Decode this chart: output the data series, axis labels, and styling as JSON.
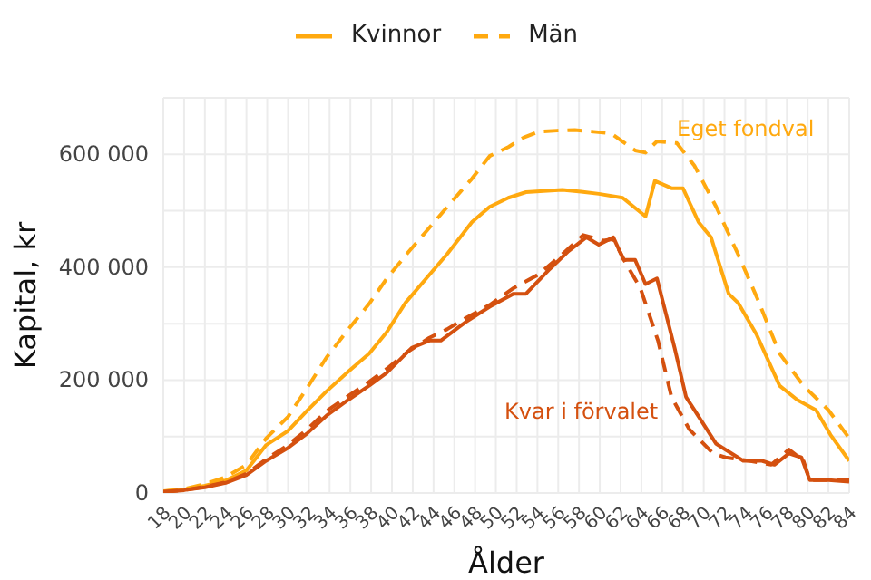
{
  "chart_data": {
    "type": "line",
    "xlabel": "Ålder",
    "ylabel": "Kapital, kr",
    "legend": "top",
    "grid": true,
    "marker": "none",
    "xlim": [
      18,
      84
    ],
    "xticks": [
      18,
      20,
      22,
      24,
      26,
      28,
      30,
      32,
      34,
      36,
      38,
      40,
      42,
      44,
      46,
      48,
      50,
      52,
      54,
      56,
      58,
      60,
      62,
      64,
      66,
      68,
      70,
      72,
      74,
      76,
      78,
      80,
      82,
      84
    ],
    "ylim": [
      0,
      700000
    ],
    "yticks": [
      0,
      {
        "value": 100000,
        "label": null
      },
      {
        "value": 200000,
        "label": "200 000"
      },
      {
        "value": 300000,
        "label": null
      },
      {
        "value": 400000,
        "label": "400 000"
      },
      {
        "value": 500000,
        "label": null
      },
      {
        "value": 600000,
        "label": "600 000"
      }
    ],
    "annotations": [
      "Eget fondval",
      "Kvar i förvalet"
    ],
    "series": [
      {
        "name": "Kvinnor",
        "color": "#ffa90f",
        "line_style": "solid",
        "x": [
          18,
          20,
          22,
          24,
          26,
          27.9,
          30,
          31.8,
          33.7,
          35.8,
          37.8,
          39.5,
          41.3,
          43.3,
          45.3,
          47.7,
          49.4,
          51.2,
          52.9,
          54.6,
          56.4,
          58.2,
          59.9,
          62.2,
          64.4,
          65.3,
          66.9,
          68,
          69.5,
          70.7,
          72.4,
          73.3,
          75.1,
          77.3,
          79,
          80.8,
          82.2,
          84
        ],
        "values": [
          3000,
          6000,
          13000,
          22000,
          40000,
          85000,
          110000,
          145000,
          180000,
          215000,
          247000,
          285000,
          337000,
          380000,
          423000,
          480000,
          507000,
          523000,
          533000,
          535000,
          537000,
          534000,
          530000,
          523000,
          490000,
          553000,
          540000,
          540000,
          480000,
          453000,
          353000,
          337000,
          280000,
          190000,
          165000,
          147000,
          103000,
          57000
        ]
      },
      {
        "name": "Män",
        "color": "#ffa90f",
        "line_style": "dashed",
        "x": [
          18,
          20,
          22,
          24,
          26,
          27.9,
          30,
          31.8,
          33.7,
          35.8,
          37.8,
          39.5,
          41.5,
          43.6,
          45.7,
          47.7,
          49.4,
          51.2,
          52.7,
          54.1,
          55.9,
          57.6,
          59.4,
          61.1,
          63.4,
          64.4,
          65.5,
          67.4,
          69.1,
          71.2,
          73.3,
          75.1,
          77.3,
          79.6,
          82,
          84
        ],
        "values": [
          3000,
          7000,
          16000,
          28000,
          50000,
          97000,
          135000,
          185000,
          240000,
          290000,
          335000,
          380000,
          425000,
          470000,
          515000,
          557000,
          597000,
          613000,
          630000,
          640000,
          642000,
          643000,
          640000,
          637000,
          607000,
          603000,
          623000,
          620000,
          580000,
          507000,
          423000,
          347000,
          247000,
          190000,
          147000,
          97000
        ]
      },
      {
        "color": "#d4500f",
        "line_style": "solid",
        "x": [
          18,
          20,
          22,
          24,
          26,
          27.9,
          30,
          31.8,
          33.7,
          35.8,
          37.8,
          39.5,
          41.9,
          43.6,
          44.7,
          47.1,
          49.4,
          51.7,
          52.9,
          55.2,
          56.9,
          58.7,
          59.9,
          61.3,
          62.3,
          63.4,
          64.4,
          65.5,
          67.2,
          68.3,
          69.1,
          71.2,
          73.8,
          75.6,
          76.8,
          78.2,
          79.4,
          80.2,
          82,
          84
        ],
        "values": [
          2000,
          5000,
          10000,
          18000,
          32000,
          57000,
          80000,
          105000,
          137000,
          165000,
          190000,
          213000,
          257000,
          270000,
          270000,
          303000,
          330000,
          353000,
          353000,
          397000,
          427000,
          453000,
          440000,
          453000,
          413000,
          413000,
          370000,
          380000,
          257000,
          170000,
          147000,
          87000,
          57000,
          57000,
          50000,
          70000,
          63000,
          23000,
          23000,
          20000
        ]
      },
      {
        "color": "#d4500f",
        "line_style": "dashed",
        "x": [
          18,
          20,
          22,
          24,
          26,
          27.9,
          30,
          31.8,
          33.7,
          35.8,
          37.8,
          39.5,
          41.5,
          43.6,
          45.3,
          47.1,
          49.4,
          51.7,
          54.1,
          56.4,
          58.4,
          60.4,
          61.3,
          62.5,
          63.9,
          65.6,
          66.9,
          68.6,
          70.9,
          72.1,
          74.4,
          76.5,
          78.2,
          79.6,
          80.2,
          82,
          84
        ],
        "values": [
          2000,
          5000,
          11000,
          19000,
          34000,
          60000,
          85000,
          112000,
          145000,
          172000,
          197000,
          220000,
          250000,
          275000,
          290000,
          310000,
          333000,
          363000,
          387000,
          423000,
          457000,
          447000,
          450000,
          407000,
          363000,
          270000,
          170000,
          113000,
          70000,
          63000,
          57000,
          50000,
          77000,
          57000,
          23000,
          23000,
          23000
        ]
      }
    ]
  }
}
